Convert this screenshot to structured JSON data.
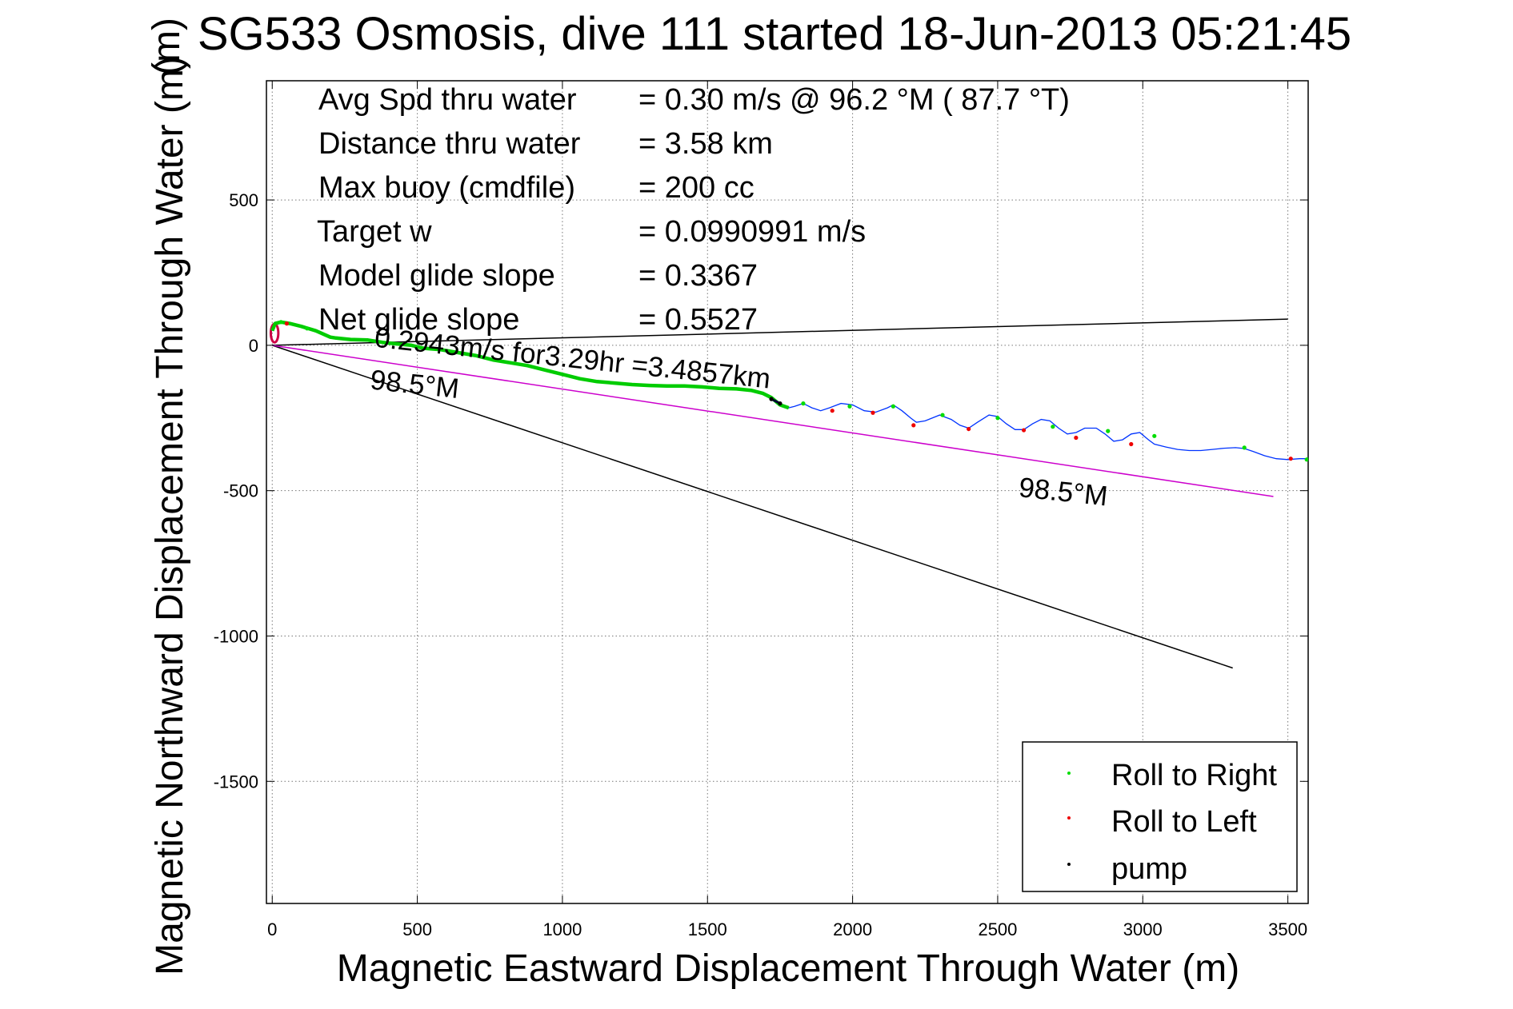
{
  "chart_data": {
    "type": "scatter",
    "title": "SG533 Osmosis, dive 111 started 18-Jun-2013 05:21:45",
    "title_overlap_glyph": "(m)",
    "xlabel": "Magnetic Eastward Displacement Through Water (m)",
    "ylabel": "Magnetic Northward Displacement Through Water (m)",
    "xlim": [
      -20,
      3570
    ],
    "ylim": [
      -1920,
      910
    ],
    "grid": true,
    "xticks": [
      0,
      500,
      1000,
      1500,
      2000,
      2500,
      3000,
      3500
    ],
    "xtick_labels": [
      "0",
      "500",
      "1000",
      "1500",
      "2000",
      "2500",
      "3000",
      "3500"
    ],
    "yticks": [
      500,
      0,
      -500,
      -1000,
      -1500
    ],
    "ytick_labels": [
      "500",
      "0",
      "-500",
      "-1000",
      "-1500"
    ],
    "info": [
      {
        "label": "Avg Spd thru water",
        "value": "=  0.30 m/s @  96.2 °M ( 87.7 °T)"
      },
      {
        "label": "Distance thru water",
        "value": "=  3.58 km"
      },
      {
        "label": "Max buoy (cmdfile)",
        "value": "= 200 cc"
      },
      {
        "label": "Target w",
        "value": "= 0.0990991 m/s"
      },
      {
        "label": "Model glide slope",
        "value": "= 0.3367"
      },
      {
        "label": "Net glide slope",
        "value": "= 0.5527"
      }
    ],
    "annotations": [
      {
        "text": "0.2943m/s for3.29hr =3.4857km",
        "x": 350,
        "y": -5,
        "rotation_deg": 6
      },
      {
        "text": "98.5°M",
        "x": 335,
        "y": -150,
        "rotation_deg": 6
      },
      {
        "text": "98.5°M",
        "x": 2570,
        "y": -520,
        "rotation_deg": 6
      }
    ],
    "reference_lines": [
      {
        "name": "black-upper",
        "color": "#000000",
        "x": [
          0,
          3500
        ],
        "y": [
          0,
          90
        ]
      },
      {
        "name": "black-lower",
        "color": "#000000",
        "x": [
          0,
          3310
        ],
        "y": [
          0,
          -1110
        ]
      },
      {
        "name": "magenta",
        "color": "#cc00cc",
        "x": [
          0,
          3450
        ],
        "y": [
          0,
          -520
        ]
      }
    ],
    "track": {
      "color": "#0033ff",
      "x": [
        0,
        10,
        30,
        60,
        100,
        150,
        200,
        220,
        270,
        330,
        380,
        430,
        480,
        520,
        580,
        640,
        700,
        760,
        820,
        880,
        940,
        1000,
        1060,
        1120,
        1180,
        1240,
        1300,
        1360,
        1420,
        1480,
        1540,
        1600,
        1650,
        1690,
        1720,
        1750,
        1780,
        1800,
        1830,
        1860,
        1890,
        1920,
        1960,
        2000,
        2040,
        2080,
        2120,
        2140,
        2170,
        2200,
        2220,
        2250,
        2300,
        2340,
        2370,
        2400,
        2430,
        2470,
        2500,
        2530,
        2560,
        2590,
        2620,
        2650,
        2680,
        2710,
        2740,
        2770,
        2800,
        2840,
        2870,
        2900,
        2930,
        2960,
        2990,
        3020,
        3040,
        3080,
        3120,
        3160,
        3200,
        3240,
        3280,
        3320,
        3350,
        3380,
        3420,
        3460,
        3500,
        3540,
        3570
      ],
      "y": [
        50,
        75,
        80,
        75,
        65,
        50,
        28,
        25,
        20,
        18,
        10,
        5,
        0,
        -10,
        -15,
        -25,
        -35,
        -50,
        -60,
        -70,
        -85,
        -100,
        -115,
        -125,
        -130,
        -135,
        -138,
        -140,
        -140,
        -143,
        -148,
        -150,
        -155,
        -165,
        -180,
        -205,
        -215,
        -210,
        -200,
        -215,
        -225,
        -215,
        -200,
        -205,
        -225,
        -230,
        -215,
        -205,
        -225,
        -250,
        -265,
        -260,
        -240,
        -255,
        -275,
        -285,
        -265,
        -240,
        -245,
        -270,
        -290,
        -290,
        -270,
        -255,
        -260,
        -285,
        -305,
        -300,
        -285,
        -285,
        -305,
        -330,
        -325,
        -305,
        -300,
        -325,
        -340,
        -350,
        -358,
        -362,
        -362,
        -358,
        -354,
        -352,
        -355,
        -365,
        -380,
        -390,
        -393,
        -390,
        -390
      ]
    },
    "loop": {
      "color": "#cc0044",
      "cx": 8,
      "cy": 42,
      "rx": 13,
      "ry": 32
    },
    "green_track_end_x": 1780,
    "series": [
      {
        "name": "Roll to Right",
        "color": "#00dd00",
        "x": [
          30,
          120,
          1830,
          1990,
          2140,
          2310,
          2500,
          2690,
          2880,
          3040,
          3350,
          3565
        ],
        "y": [
          80,
          58,
          -200,
          -210,
          -210,
          -240,
          -250,
          -280,
          -295,
          -312,
          -352,
          -393
        ]
      },
      {
        "name": "Roll to Left",
        "color": "#ee0000",
        "x": [
          50,
          1930,
          2070,
          2210,
          2400,
          2590,
          2770,
          2960,
          3510
        ],
        "y": [
          75,
          -225,
          -232,
          -275,
          -288,
          -292,
          -318,
          -340,
          -390
        ]
      },
      {
        "name": "pump",
        "color": "#000000",
        "x": [
          1720,
          1750
        ],
        "y": [
          -185,
          -200
        ]
      }
    ],
    "legend": {
      "position": "bottom-right"
    }
  }
}
